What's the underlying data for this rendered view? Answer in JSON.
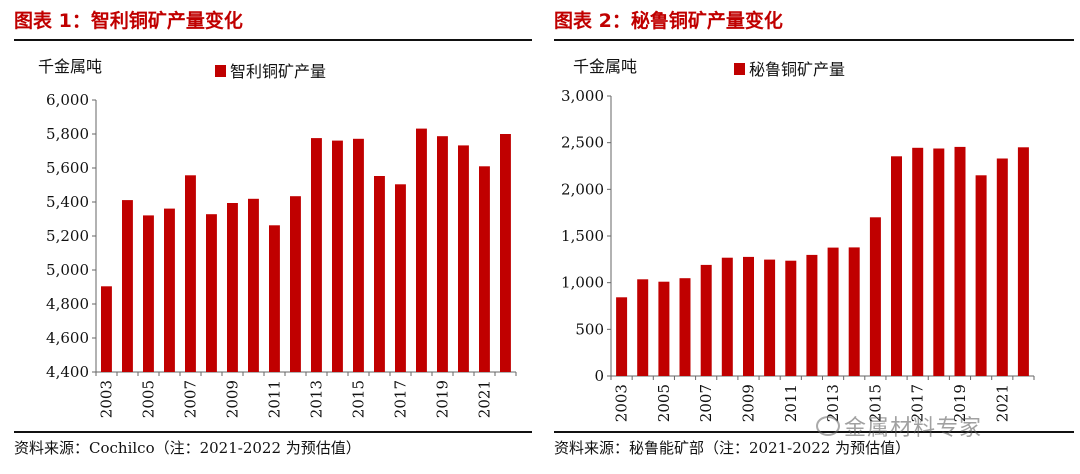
{
  "panels": [
    {
      "title": "图表 1：智利铜矿产量变化",
      "source": "资料来源：Cochilco（注：2021-2022 为预估值）",
      "chart_data": {
        "type": "bar",
        "ylabel": "千金属吨",
        "legend": "智利铜矿产量",
        "legend_position": "top-center",
        "color": "#c00000",
        "ylim": [
          4400,
          6000
        ],
        "yticks": [
          "4,400",
          "4,600",
          "4,800",
          "5,000",
          "5,200",
          "5,400",
          "5,600",
          "5,800",
          "6,000"
        ],
        "categories": [
          "2003",
          "2004",
          "2005",
          "2006",
          "2007",
          "2008",
          "2009",
          "2010",
          "2011",
          "2012",
          "2013",
          "2014",
          "2015",
          "2016",
          "2017",
          "2018",
          "2019",
          "2020",
          "2021",
          "2022"
        ],
        "xtick_labels": [
          "2003",
          "",
          "2005",
          "",
          "2007",
          "",
          "2009",
          "",
          "2011",
          "",
          "2013",
          "",
          "2015",
          "",
          "2017",
          "",
          "2019",
          "",
          "2021",
          ""
        ],
        "values": [
          4904,
          5411,
          5321,
          5361,
          5557,
          5328,
          5394,
          5419,
          5263,
          5434,
          5776,
          5761,
          5772,
          5553,
          5504,
          5832,
          5787,
          5733,
          5610,
          5800
        ],
        "grid": false
      }
    },
    {
      "title": "图表 2：秘鲁铜矿产量变化",
      "source": "资料来源：秘鲁能矿部（注：2021-2022 为预估值）",
      "chart_data": {
        "type": "bar",
        "ylabel": "千金属吨",
        "legend": "秘鲁铜矿产量",
        "legend_position": "top-center",
        "color": "#c00000",
        "ylim": [
          0,
          3000
        ],
        "yticks": [
          "0",
          "500",
          "1,000",
          "1,500",
          "2,000",
          "2,500",
          "3,000"
        ],
        "categories": [
          "2003",
          "2004",
          "2005",
          "2006",
          "2007",
          "2008",
          "2009",
          "2010",
          "2011",
          "2012",
          "2013",
          "2014",
          "2015",
          "2016",
          "2017",
          "2018",
          "2019",
          "2020",
          "2021",
          "2022"
        ],
        "xtick_labels": [
          "2003",
          "",
          "2005",
          "",
          "2007",
          "",
          "2009",
          "",
          "2011",
          "",
          "2013",
          "",
          "2015",
          "",
          "2017",
          "",
          "2019",
          "",
          "2021",
          ""
        ],
        "values": [
          843,
          1036,
          1010,
          1048,
          1190,
          1268,
          1276,
          1247,
          1235,
          1298,
          1376,
          1378,
          1700,
          2354,
          2445,
          2437,
          2455,
          2150,
          2330,
          2450
        ],
        "grid": false
      }
    }
  ],
  "watermark": "金属材料专家"
}
